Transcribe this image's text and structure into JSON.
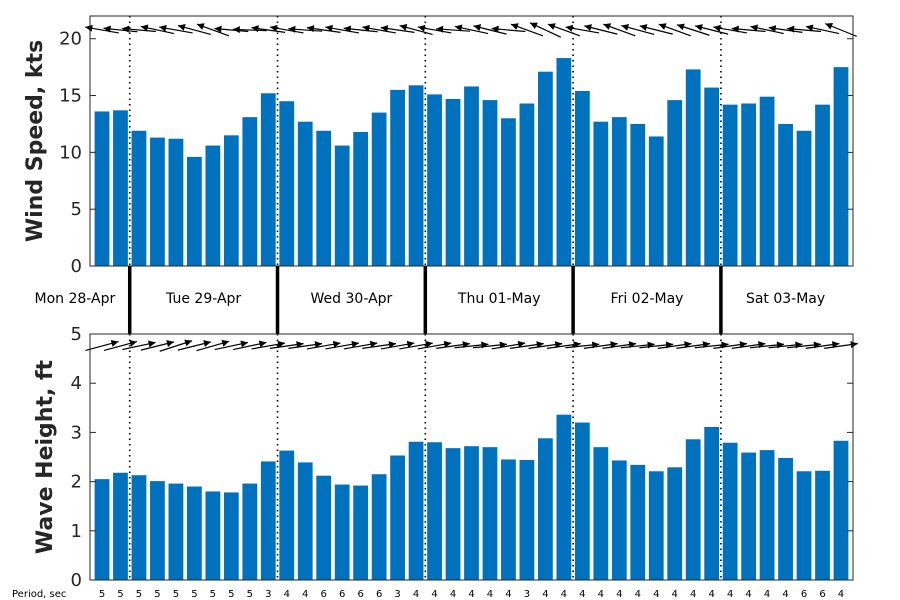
{
  "colors": {
    "bar": "#0072BD",
    "axis": "#262626",
    "arrow": "#000000"
  },
  "chart_data": [
    {
      "type": "bar",
      "ylabel": "Wind Speed, kts",
      "ylim": [
        0,
        22
      ],
      "yticks": [
        0,
        5,
        10,
        15,
        20
      ],
      "values": [
        13.6,
        13.7,
        11.9,
        11.3,
        11.2,
        9.6,
        10.6,
        11.5,
        13.1,
        15.2,
        14.5,
        12.7,
        11.9,
        10.6,
        11.8,
        13.5,
        15.5,
        15.9,
        15.1,
        14.7,
        15.8,
        14.6,
        13.0,
        14.3,
        17.1,
        18.3,
        15.4,
        12.7,
        13.1,
        12.5,
        11.4,
        14.6,
        17.3,
        15.7,
        14.2,
        14.3,
        14.9,
        12.5,
        11.9,
        14.2,
        17.5
      ],
      "arrow_direction": "toward-west",
      "arrow_angles_deg": [
        170,
        174,
        175,
        168,
        170,
        165,
        160,
        175,
        178,
        172,
        170,
        176,
        172,
        170,
        174,
        170,
        172,
        165,
        170,
        176,
        168,
        166,
        175,
        160,
        155,
        160,
        170,
        166,
        160,
        165,
        166,
        160,
        162,
        166,
        170,
        175,
        168,
        172,
        175,
        168,
        158
      ]
    },
    {
      "type": "bar",
      "ylabel": "Wave Height, ft",
      "ylim": [
        0,
        5
      ],
      "yticks": [
        0,
        1,
        2,
        3,
        4,
        5
      ],
      "values": [
        2.05,
        2.18,
        2.13,
        2.01,
        1.96,
        1.9,
        1.8,
        1.78,
        1.96,
        2.41,
        2.63,
        2.39,
        2.12,
        1.94,
        1.92,
        2.15,
        2.53,
        2.81,
        2.8,
        2.68,
        2.72,
        2.7,
        2.45,
        2.44,
        2.88,
        3.36,
        3.2,
        2.7,
        2.43,
        2.34,
        2.21,
        2.29,
        2.86,
        3.11,
        2.79,
        2.59,
        2.64,
        2.48,
        2.21,
        2.22,
        2.83
      ],
      "arrow_direction": "toward-east",
      "arrow_angles_deg": [
        15,
        15,
        12,
        14,
        18,
        14,
        16,
        12,
        12,
        10,
        8,
        8,
        10,
        10,
        10,
        8,
        10,
        10,
        10,
        8,
        6,
        6,
        10,
        8,
        8,
        8,
        6,
        8,
        8,
        6,
        6,
        8,
        8,
        6,
        8,
        8,
        6,
        6,
        6,
        8,
        8
      ]
    }
  ],
  "days": [
    {
      "label": "Mon 28-Apr",
      "start": 0,
      "end": 2
    },
    {
      "label": "Tue 29-Apr",
      "start": 2,
      "end": 10
    },
    {
      "label": "Wed 30-Apr",
      "start": 10,
      "end": 18
    },
    {
      "label": "Thu 01-May",
      "start": 18,
      "end": 26
    },
    {
      "label": "Fri 02-May",
      "start": 26,
      "end": 34
    },
    {
      "label": "Sat 03-May",
      "start": 34,
      "end": 41
    }
  ],
  "period_label": "Period, sec",
  "periods": [
    "5",
    "5",
    "5",
    "5",
    "5",
    "5",
    "5",
    "5",
    "5",
    "3",
    "4",
    "4",
    "6",
    "6",
    "6",
    "6",
    "3",
    "4",
    "4",
    "4",
    "4",
    "4",
    "4",
    "3",
    "4",
    "4",
    "4",
    "4",
    "4",
    "4",
    "4",
    "4",
    "4",
    "4",
    "4",
    "4",
    "4",
    "4",
    "6",
    "6",
    "4"
  ]
}
